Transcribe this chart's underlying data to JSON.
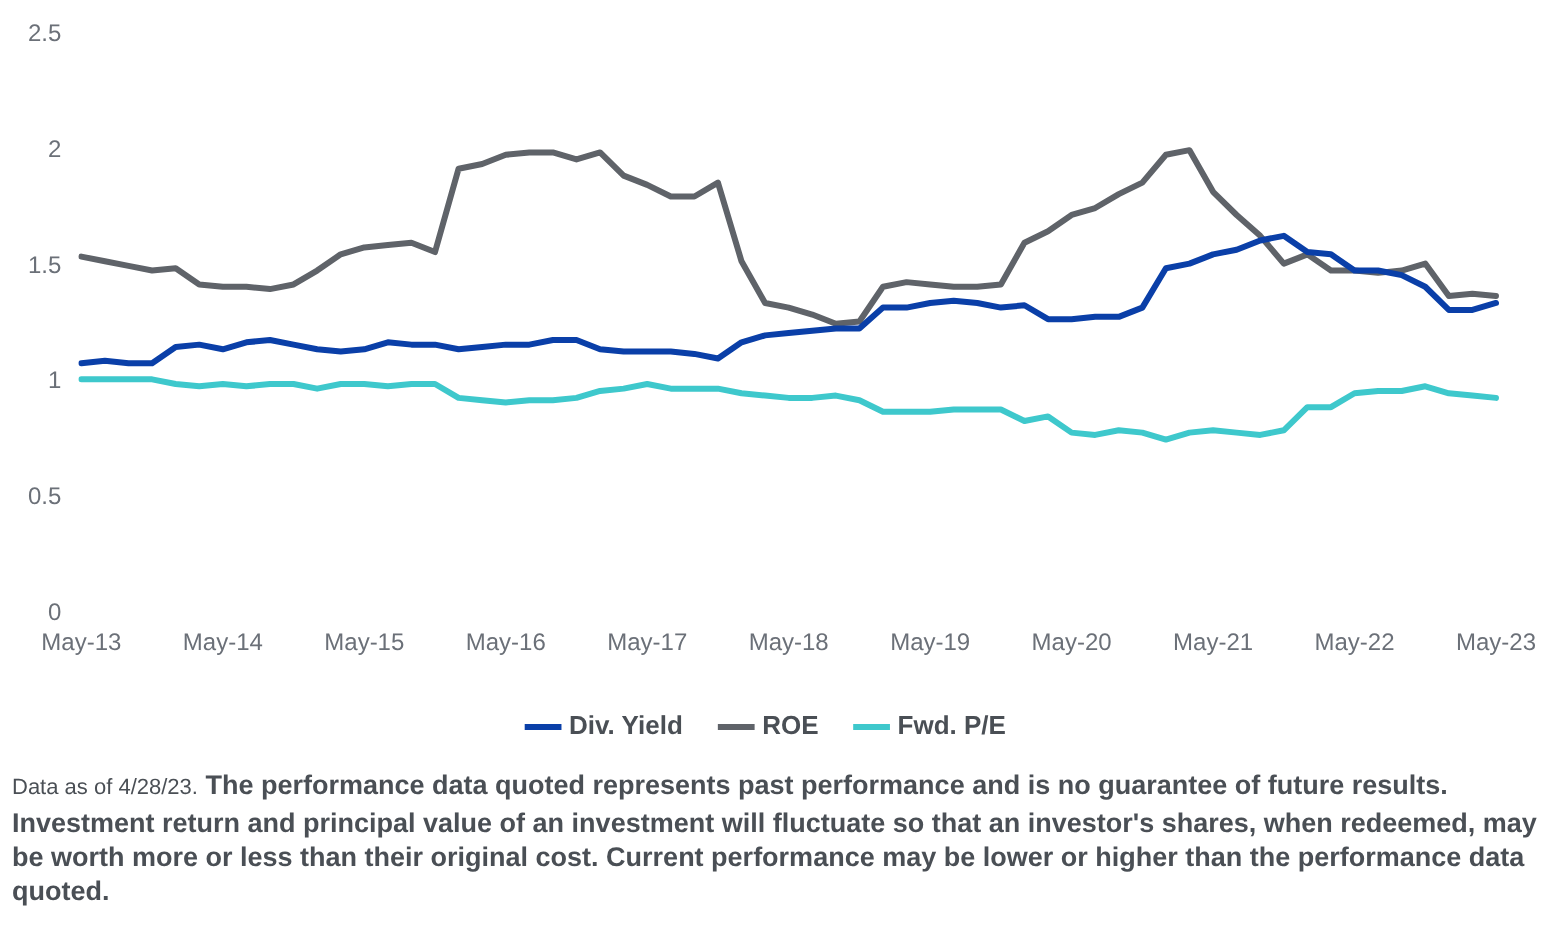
{
  "chart_data": {
    "type": "line",
    "categories": [
      "May-13",
      null,
      null,
      null,
      null,
      null,
      "May-14",
      null,
      null,
      null,
      null,
      null,
      "May-15",
      null,
      null,
      null,
      null,
      null,
      "May-16",
      null,
      null,
      null,
      null,
      null,
      "May-17",
      null,
      null,
      null,
      null,
      null,
      "May-18",
      null,
      null,
      null,
      null,
      null,
      "May-19",
      null,
      null,
      null,
      null,
      null,
      "May-20",
      null,
      null,
      null,
      null,
      null,
      "May-21",
      null,
      null,
      null,
      null,
      null,
      "May-22",
      null,
      null,
      null,
      null,
      null,
      "May-23"
    ],
    "series": [
      {
        "name": "Div. Yield",
        "color": "#0a3fa8",
        "values": [
          1.08,
          1.09,
          1.08,
          1.08,
          1.15,
          1.16,
          1.14,
          1.17,
          1.18,
          1.16,
          1.14,
          1.13,
          1.14,
          1.17,
          1.16,
          1.16,
          1.14,
          1.15,
          1.16,
          1.16,
          1.18,
          1.18,
          1.14,
          1.13,
          1.13,
          1.13,
          1.12,
          1.1,
          1.17,
          1.2,
          1.21,
          1.22,
          1.23,
          1.23,
          1.32,
          1.32,
          1.34,
          1.35,
          1.34,
          1.32,
          1.33,
          1.27,
          1.27,
          1.28,
          1.28,
          1.32,
          1.49,
          1.51,
          1.55,
          1.57,
          1.61,
          1.63,
          1.56,
          1.55,
          1.48,
          1.48,
          1.46,
          1.41,
          1.31,
          1.31,
          1.34
        ]
      },
      {
        "name": "ROE",
        "color": "#5f6369",
        "values": [
          1.54,
          1.52,
          1.5,
          1.48,
          1.49,
          1.42,
          1.41,
          1.41,
          1.4,
          1.42,
          1.48,
          1.55,
          1.58,
          1.59,
          1.6,
          1.56,
          1.92,
          1.94,
          1.98,
          1.99,
          1.99,
          1.96,
          1.99,
          1.89,
          1.85,
          1.8,
          1.8,
          1.86,
          1.52,
          1.34,
          1.32,
          1.29,
          1.25,
          1.26,
          1.41,
          1.43,
          1.42,
          1.41,
          1.41,
          1.42,
          1.6,
          1.65,
          1.72,
          1.75,
          1.81,
          1.86,
          1.98,
          2.0,
          1.82,
          1.72,
          1.63,
          1.51,
          1.55,
          1.48,
          1.48,
          1.47,
          1.48,
          1.51,
          1.37,
          1.38,
          1.37
        ]
      },
      {
        "name": "Fwd. P/E",
        "color": "#3ec8cc",
        "values": [
          1.01,
          1.01,
          1.01,
          1.01,
          0.99,
          0.98,
          0.99,
          0.98,
          0.99,
          0.99,
          0.97,
          0.99,
          0.99,
          0.98,
          0.99,
          0.99,
          0.93,
          0.92,
          0.91,
          0.92,
          0.92,
          0.93,
          0.96,
          0.97,
          0.99,
          0.97,
          0.97,
          0.97,
          0.95,
          0.94,
          0.93,
          0.93,
          0.94,
          0.92,
          0.87,
          0.87,
          0.87,
          0.88,
          0.88,
          0.88,
          0.83,
          0.85,
          0.78,
          0.77,
          0.79,
          0.78,
          0.75,
          0.78,
          0.79,
          0.78,
          0.77,
          0.79,
          0.89,
          0.89,
          0.95,
          0.96,
          0.96,
          0.98,
          0.95,
          0.94,
          0.93
        ]
      }
    ],
    "ylim": [
      0,
      2.5
    ],
    "yticks": [
      0,
      0.5,
      1,
      1.5,
      2,
      2.5
    ],
    "legend": "bottom",
    "marker": "none",
    "line_style": "solid",
    "grid": false,
    "annotations": [
      "Data as of 4/28/23.",
      "The performance data quoted represents past performance and is no guarantee of future results. Investment return and principal value of an investment will fluctuate so that an investor's shares, when redeemed, may be worth more or less than their original cost. Current performance may be lower or higher than the performance data quoted."
    ]
  }
}
